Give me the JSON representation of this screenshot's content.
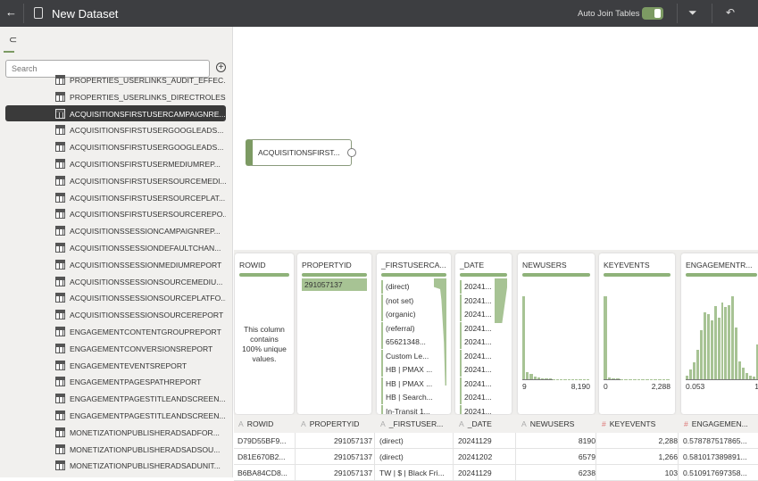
{
  "header": {
    "title": "New Dataset",
    "auto_join_label": "Auto Join Tables",
    "auto_join_on": true,
    "icons": [
      "back-arrow-icon",
      "dataset-icon",
      "filter-icon",
      "undo-icon"
    ]
  },
  "sidebar": {
    "search_placeholder": "Search",
    "items": [
      "PROPERTIES_USERLINKS_AUDIT_EFFEC...",
      "PROPERTIES_USERLINKS_DIRECTROLES",
      "ACQUISITIONSFIRSTUSERCAMPAIGNRE...",
      "ACQUISITIONSFIRSTUSERGOOGLEADS...",
      "ACQUISITIONSFIRSTUSERGOOGLEADS...",
      "ACQUISITIONSFIRSTUSERMEDIUMREP...",
      "ACQUISITIONSFIRSTUSERSOURCEMEDI...",
      "ACQUISITIONSFIRSTUSERSOURCEPLAT...",
      "ACQUISITIONSFIRSTUSERSOURCEREPO...",
      "ACQUISITIONSSESSIONCAMPAIGNREP...",
      "ACQUISITIONSSESSIONDEFAULTCHAN...",
      "ACQUISITIONSSESSIONMEDIUMREPORT",
      "ACQUISITIONSSESSIONSOURCEMEDIU...",
      "ACQUISITIONSSESSIONSOURCEPLATFO...",
      "ACQUISITIONSSESSIONSOURCEREPORT",
      "ENGAGEMENTCONTENTGROUPREPORT",
      "ENGAGEMENTCONVERSIONSREPORT",
      "ENGAGEMENTEVENTSREPORT",
      "ENGAGEMENTPAGESPATHREPORT",
      "ENGAGEMENTPAGESTITLEANDSCREEN...",
      "ENGAGEMENTPAGESTITLEANDSCREEN...",
      "MONETIZATIONPUBLISHERADSADFOR...",
      "MONETIZATIONPUBLISHERADSADSOU...",
      "MONETIZATIONPUBLISHERADSADUNIT..."
    ],
    "selected_index": 2
  },
  "canvas": {
    "node_label": "ACQUISITIONSFIRST..."
  },
  "profile": {
    "rowid": {
      "title": "ROWID",
      "note": "This column contains 100% unique values."
    },
    "propertyid": {
      "title": "PROPERTYID",
      "value": "291057137"
    },
    "firstuser": {
      "title": "_FIRSTUSERCA...",
      "values": [
        "(direct)",
        "(not set)",
        "(organic)",
        "(referral)",
        "65621348...",
        "Custom Le...",
        "HB | PMAX ...",
        "HB | PMAX ...",
        "HB | Search...",
        "In-Transit 1..."
      ]
    },
    "date": {
      "title": "_DATE",
      "values": [
        "20241...",
        "20241...",
        "20241...",
        "20241...",
        "20241...",
        "20241...",
        "20241...",
        "20241...",
        "20241...",
        "20241..."
      ]
    },
    "newusers": {
      "title": "NEWUSERS",
      "min": "9",
      "max": "8,190",
      "dist": [
        100,
        9,
        6,
        3,
        2,
        1.5,
        1,
        1,
        0.5,
        0.5,
        0.5,
        0.3,
        0.3,
        0.3,
        0.2,
        0.2,
        0.2,
        0.2
      ]
    },
    "keyevents": {
      "title": "KEYEVENTS",
      "min": "0",
      "max": "2,288",
      "dist": [
        100,
        2,
        1,
        1,
        0.5,
        0.5,
        0.3,
        0.3,
        0.3,
        0.2,
        0.2,
        0.2,
        0.2,
        0.2,
        0.2,
        0.2
      ]
    },
    "engagement": {
      "title": "ENGAGEMENTR...",
      "min": "0.053",
      "max": "1",
      "dist": [
        4,
        10,
        17,
        30,
        50,
        68,
        66,
        60,
        74,
        62,
        78,
        73,
        75,
        84,
        52,
        18,
        12,
        6,
        4,
        3,
        35
      ]
    }
  },
  "grid": {
    "headers": [
      {
        "type": "A",
        "label": "ROWID"
      },
      {
        "type": "A",
        "label": "PROPERTYID"
      },
      {
        "type": "A",
        "label": "_FIRSTUSER..."
      },
      {
        "type": "A",
        "label": "_DATE"
      },
      {
        "type": "A",
        "label": "NEWUSERS"
      },
      {
        "type": "#",
        "label": "KEYEVENTS"
      },
      {
        "type": "#",
        "label": "ENGAGEMEN..."
      }
    ],
    "rows": [
      [
        "D79D55BF9...",
        "291057137",
        "(direct)",
        "20241129",
        "8190",
        "2,288",
        "0.578787517865..."
      ],
      [
        "D81E670B2...",
        "291057137",
        "(direct)",
        "20241202",
        "6579",
        "1,266",
        "0.581017389891..."
      ],
      [
        "B6BA84CD8...",
        "291057137",
        "TW | $ | Black Fri...",
        "20241129",
        "6238",
        "103",
        "0.510917697358..."
      ]
    ]
  },
  "colors": {
    "accent": "#7c9a63",
    "header_bg": "#3d3e41",
    "bar": "#a7c394"
  }
}
